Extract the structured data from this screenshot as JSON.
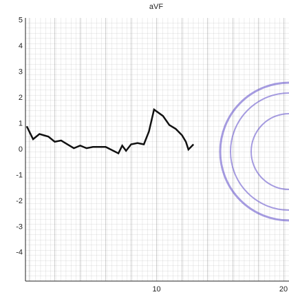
{
  "chart_data": {
    "type": "line",
    "title": "aVF",
    "x": [
      -0.2,
      0.3,
      0.8,
      1.5,
      2,
      2.5,
      3,
      3.5,
      4,
      4.5,
      5,
      6,
      7,
      7.3,
      7.6,
      8,
      8.5,
      9,
      9.4,
      9.8,
      10.5,
      11,
      11.5,
      12,
      12.3,
      12.5,
      12.9
    ],
    "series": [
      {
        "color": "#111111",
        "values": [
          0.9,
          0.4,
          0.6,
          0.5,
          0.3,
          0.35,
          0.2,
          0.05,
          0.15,
          0.05,
          0.1,
          0.1,
          -0.15,
          0.15,
          -0.05,
          0.2,
          0.25,
          0.2,
          0.7,
          1.55,
          1.3,
          0.95,
          0.8,
          0.55,
          0.3,
          0.0,
          0.2
        ]
      }
    ],
    "xlim": [
      -0.3,
      20.4
    ],
    "ylim": [
      -5.1,
      5.1
    ],
    "xticks": [
      10,
      20
    ],
    "yticks": [
      5,
      4,
      3,
      2,
      1,
      0,
      -1,
      -2,
      -3,
      -4
    ],
    "grid": true
  }
}
